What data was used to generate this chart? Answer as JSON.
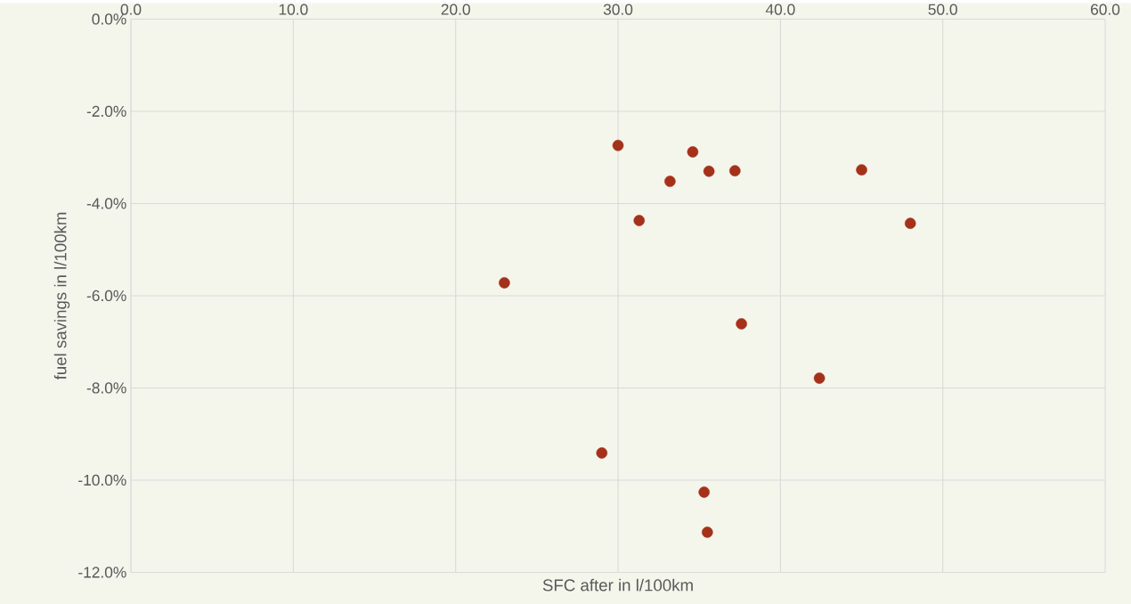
{
  "chart_data": {
    "type": "scatter",
    "xlabel": "SFC after in l/100km",
    "ylabel": "fuel savings in l/100km",
    "x": [
      30.0,
      34.6,
      35.6,
      37.2,
      45.0,
      33.2,
      31.3,
      48.0,
      23.0,
      37.6,
      42.4,
      29.0,
      35.3,
      35.5
    ],
    "values": [
      -2.74,
      -2.88,
      -3.3,
      -3.29,
      -3.27,
      -3.52,
      -4.37,
      -4.43,
      -5.72,
      -6.61,
      -7.79,
      -9.41,
      -10.26,
      -11.13
    ],
    "color": "#a5311a",
    "marker": "circle",
    "grid": true,
    "xlim": [
      0,
      60
    ],
    "ylim": [
      -12,
      0
    ],
    "xticks": [
      {
        "value": 0,
        "label": "0.0"
      },
      {
        "value": 10,
        "label": "10.0"
      },
      {
        "value": 20,
        "label": "20.0"
      },
      {
        "value": 30,
        "label": "30.0"
      },
      {
        "value": 40,
        "label": "40.0"
      },
      {
        "value": 50,
        "label": "50.0"
      },
      {
        "value": 60,
        "label": "60.0"
      }
    ],
    "yticks": [
      {
        "value": 0,
        "label": "0.0%"
      },
      {
        "value": -2,
        "label": "-2.0%"
      },
      {
        "value": -4,
        "label": "-4.0%"
      },
      {
        "value": -6,
        "label": "-6.0%"
      },
      {
        "value": -8,
        "label": "-8.0%"
      },
      {
        "value": -10,
        "label": "-10.0%"
      },
      {
        "value": -12,
        "label": "-12.0%"
      }
    ]
  }
}
